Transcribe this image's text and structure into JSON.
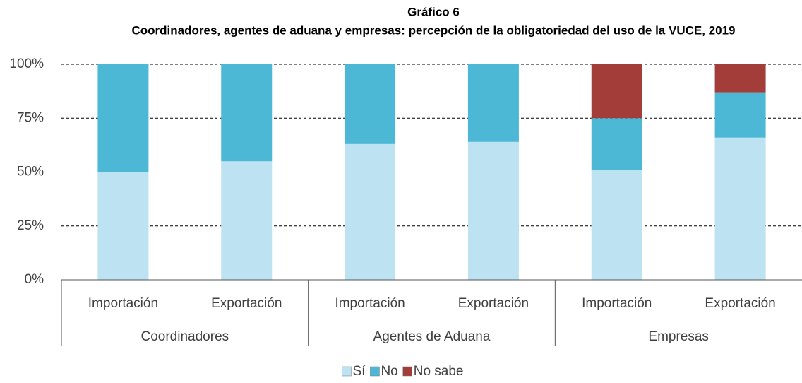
{
  "chart_data": {
    "type": "stacked_bar",
    "title": "Gráfico 6",
    "subtitle": "Coordinadores, agentes de aduana y empresas: percepción de la obligatoriedad del uso de la VUCE, 2019",
    "categories": [
      "Importación",
      "Exportación",
      "Importación",
      "Exportación",
      "Importación",
      "Exportación"
    ],
    "groups": [
      "Coordinadores",
      "Agentes de Aduana",
      "Empresas"
    ],
    "series": [
      {
        "name": "Sí",
        "color": "#bde2f1",
        "values": [
          50,
          55,
          63,
          64,
          51,
          66
        ]
      },
      {
        "name": "No",
        "color": "#4cb8d6",
        "values": [
          50,
          45,
          37,
          36,
          24,
          21
        ]
      },
      {
        "name": "No sabe",
        "color": "#a23d3a",
        "values": [
          0,
          0,
          0,
          0,
          25,
          13
        ]
      }
    ],
    "ylim": [
      0,
      100
    ],
    "yticks": [
      {
        "value": 0,
        "label": "0%"
      },
      {
        "value": 25,
        "label": "25%"
      },
      {
        "value": 50,
        "label": "50%"
      },
      {
        "value": 75,
        "label": "75%"
      },
      {
        "value": 100,
        "label": "100%"
      }
    ],
    "grid": true,
    "legend": "bottom"
  }
}
